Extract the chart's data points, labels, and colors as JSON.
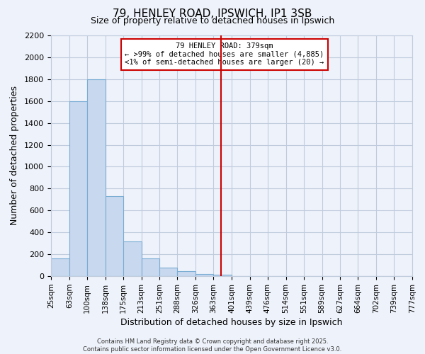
{
  "title": "79, HENLEY ROAD, IPSWICH, IP1 3SB",
  "subtitle": "Size of property relative to detached houses in Ipswich",
  "xlabel": "Distribution of detached houses by size in Ipswich",
  "ylabel": "Number of detached properties",
  "bin_edges": [
    25,
    63,
    100,
    138,
    175,
    213,
    251,
    288,
    326,
    363,
    401,
    439,
    476,
    514,
    551,
    589,
    627,
    664,
    702,
    739,
    777
  ],
  "bin_labels": [
    "25sqm",
    "63sqm",
    "100sqm",
    "138sqm",
    "175sqm",
    "213sqm",
    "251sqm",
    "288sqm",
    "326sqm",
    "363sqm",
    "401sqm",
    "439sqm",
    "476sqm",
    "514sqm",
    "551sqm",
    "589sqm",
    "627sqm",
    "664sqm",
    "702sqm",
    "739sqm",
    "777sqm"
  ],
  "bar_heights": [
    160,
    1600,
    1800,
    730,
    320,
    160,
    80,
    45,
    20,
    15,
    0,
    0,
    0,
    0,
    0,
    0,
    0,
    0,
    0,
    0
  ],
  "bar_color": "#c8d8ee",
  "bar_edgecolor": "#7aadd4",
  "vline_x": 379,
  "vline_color": "#cc0000",
  "annotation_title": "79 HENLEY ROAD: 379sqm",
  "annotation_line1": "← >99% of detached houses are smaller (4,885)",
  "annotation_line2": "<1% of semi-detached houses are larger (20) →",
  "annotation_box_facecolor": "#ffffff",
  "annotation_box_edgecolor": "#cc0000",
  "ylim": [
    0,
    2200
  ],
  "yticks": [
    0,
    200,
    400,
    600,
    800,
    1000,
    1200,
    1400,
    1600,
    1800,
    2000,
    2200
  ],
  "background_color": "#eef2fa",
  "grid_color": "#c0ccdd",
  "footer_line1": "Contains HM Land Registry data © Crown copyright and database right 2025.",
  "footer_line2": "Contains public sector information licensed under the Open Government Licence v3.0."
}
